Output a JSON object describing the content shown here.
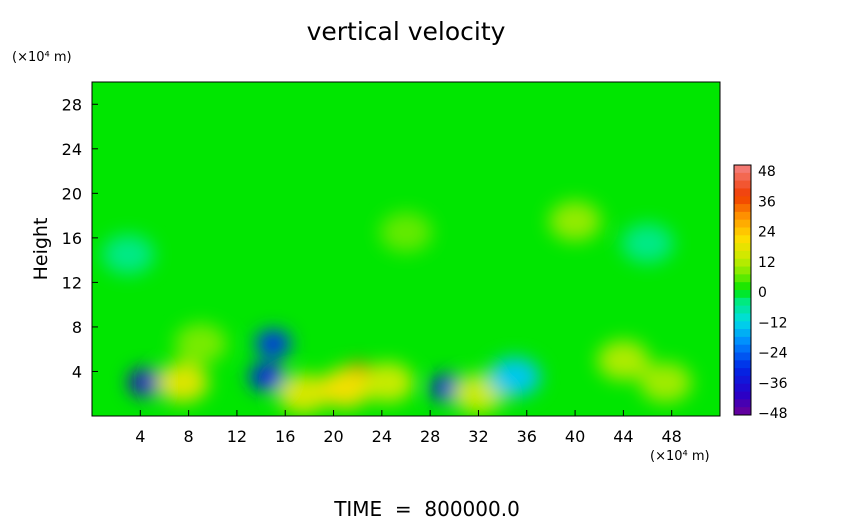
{
  "chart_data": {
    "type": "heatmap",
    "title": "vertical velocity",
    "ylabel": "Height",
    "y_unit": "(×10⁴ m)",
    "x_unit": "(×10⁴ m)",
    "xlim": [
      0,
      52
    ],
    "ylim": [
      0,
      30
    ],
    "x_ticks": [
      "4",
      "8",
      "12",
      "16",
      "20",
      "24",
      "28",
      "32",
      "36",
      "40",
      "44",
      "48"
    ],
    "y_ticks": [
      "4",
      "8",
      "12",
      "16",
      "20",
      "24",
      "28"
    ],
    "x_tick_values": [
      4,
      8,
      12,
      16,
      20,
      24,
      28,
      32,
      36,
      40,
      44,
      48
    ],
    "y_tick_values": [
      4,
      8,
      12,
      16,
      20,
      24,
      28
    ],
    "colorbar": {
      "labels": [
        "48",
        "36",
        "24",
        "12",
        "0",
        "−12",
        "−24",
        "−36",
        "−48"
      ],
      "min": -48,
      "max": 48
    },
    "background_value": 0,
    "features": [
      {
        "x": 4.5,
        "y": 3.0,
        "value": -38
      },
      {
        "x": 7.5,
        "y": 3.0,
        "value": 15
      },
      {
        "x": 14.5,
        "y": 3.5,
        "value": -30
      },
      {
        "x": 15.0,
        "y": 6.5,
        "value": -28
      },
      {
        "x": 17.5,
        "y": 2.0,
        "value": 14
      },
      {
        "x": 22.0,
        "y": 3.5,
        "value": 33
      },
      {
        "x": 21.0,
        "y": 2.5,
        "value": 18
      },
      {
        "x": 24.5,
        "y": 3.0,
        "value": 12
      },
      {
        "x": 29.5,
        "y": 2.5,
        "value": -34
      },
      {
        "x": 32.0,
        "y": 2.0,
        "value": 12
      },
      {
        "x": 35.0,
        "y": 3.5,
        "value": -14
      },
      {
        "x": 44.0,
        "y": 5.0,
        "value": 10
      },
      {
        "x": 47.5,
        "y": 3.0,
        "value": 9
      },
      {
        "x": 9.0,
        "y": 6.5,
        "value": 6
      },
      {
        "x": 40.0,
        "y": 17.5,
        "value": 8
      },
      {
        "x": 26.0,
        "y": 16.5,
        "value": 5
      },
      {
        "x": 3.0,
        "y": 14.5,
        "value": -5
      },
      {
        "x": 46.0,
        "y": 15.5,
        "value": -5
      }
    ]
  },
  "footer": {
    "time_label": "TIME  =  800000.0"
  }
}
